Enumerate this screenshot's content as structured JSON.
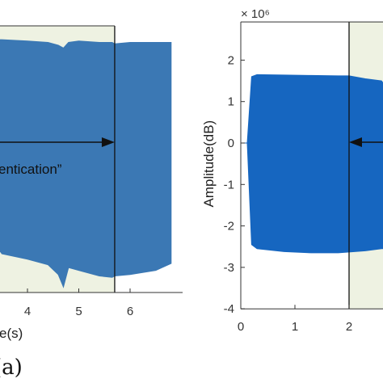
{
  "colors": {
    "signal": "#3b78b4",
    "signal_dark": "#1666c0",
    "highlight": "#eef2e2",
    "axis": "#333333"
  },
  "chart_data": [
    {
      "type": "area",
      "panel_label": "(a)",
      "xlabel": "Time(s)",
      "xlabel_visible": "e(s)",
      "x_ticks": [
        4,
        5,
        6
      ],
      "xlim": [
        2.8,
        7.3
      ],
      "annotation_visible": "entication”",
      "highlight_x_range": [
        2.8,
        5.7
      ],
      "arrow_at_x": 5.7,
      "series": [
        {
          "x": [
            2.8,
            3.0,
            3.5,
            4.0,
            4.4,
            4.6,
            4.7,
            4.8,
            5.0,
            5.4,
            5.65,
            5.7,
            6.0,
            6.5,
            6.8
          ],
          "upper": [
            0.85,
            0.86,
            0.86,
            0.85,
            0.84,
            0.82,
            0.8,
            0.84,
            0.85,
            0.84,
            0.84,
            0.83,
            0.84,
            0.84,
            0.84
          ],
          "lower": [
            -0.67,
            -0.66,
            -0.68,
            -0.72,
            -0.76,
            -0.83,
            -0.92,
            -0.78,
            -0.8,
            -0.84,
            -0.85,
            -0.84,
            -0.83,
            -0.8,
            -0.75
          ]
        }
      ]
    },
    {
      "type": "area",
      "xlabel": "",
      "ylabel": "Amplitude(dB)",
      "y_multiplier": "× 10⁶",
      "ylim": [
        -4,
        3
      ],
      "xlim": [
        0,
        3.15
      ],
      "x_ticks": [
        0,
        1,
        2
      ],
      "y_ticks": [
        -4,
        -3,
        -2,
        -1,
        0,
        1,
        2
      ],
      "highlight_x_range": [
        2.0,
        3.15
      ],
      "arrow_at_x": 2.0,
      "series": [
        {
          "x": [
            0.0,
            0.12,
            0.2,
            0.3,
            0.8,
            1.3,
            1.8,
            2.0,
            2.3,
            2.6,
            3.1
          ],
          "upper": [
            0.0,
            0.0,
            1.6,
            1.65,
            1.64,
            1.63,
            1.62,
            1.62,
            1.55,
            1.5,
            1.45
          ],
          "lower": [
            0.0,
            0.0,
            -2.45,
            -2.55,
            -2.62,
            -2.65,
            -2.65,
            -2.63,
            -2.6,
            -2.55,
            -2.55
          ]
        }
      ]
    }
  ]
}
